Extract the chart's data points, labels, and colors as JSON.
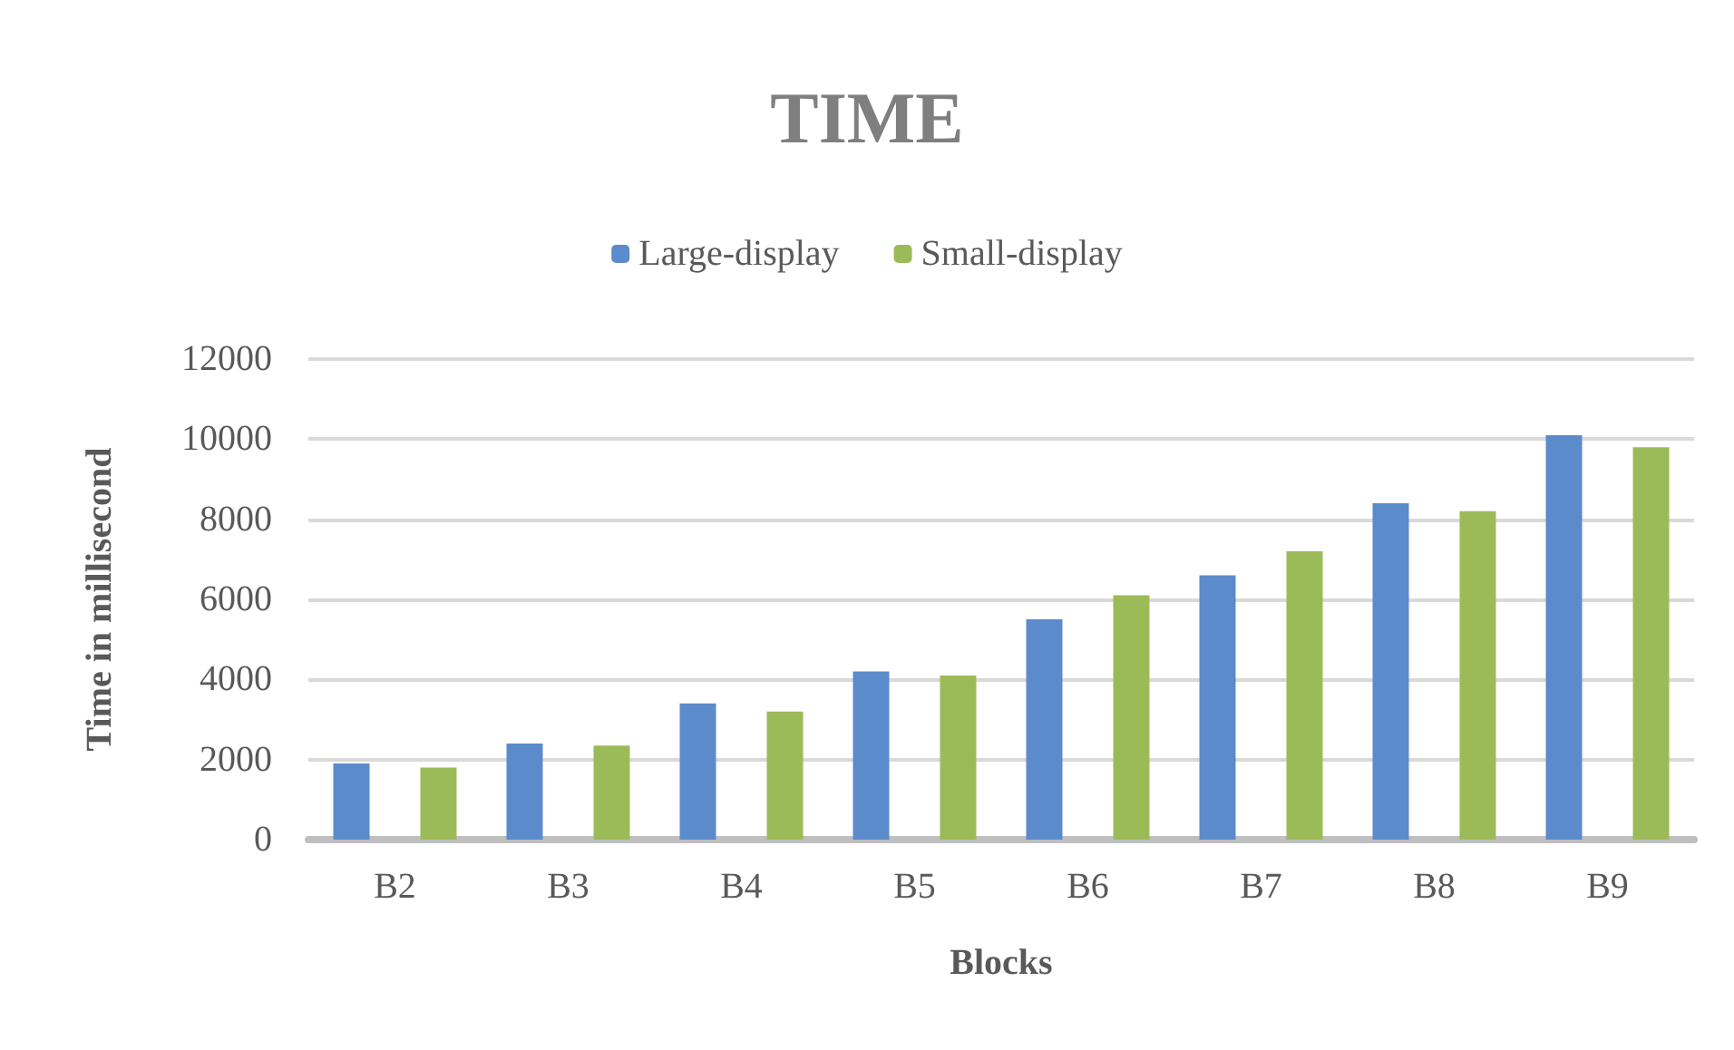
{
  "chart_data": {
    "type": "bar",
    "title": "TIME",
    "xlabel": "Blocks",
    "ylabel": "Time in millisecond",
    "categories": [
      "B2",
      "B3",
      "B4",
      "B5",
      "B6",
      "B7",
      "B8",
      "B9"
    ],
    "series": [
      {
        "name": "Large-display",
        "color": "#5b8bcb",
        "values": [
          1900,
          2400,
          3400,
          4200,
          5500,
          6600,
          8400,
          10100
        ]
      },
      {
        "name": "Small-display",
        "color": "#9bbb59",
        "values": [
          1800,
          2350,
          3200,
          4100,
          6100,
          7200,
          8200,
          9800
        ]
      }
    ],
    "ylim": [
      0,
      12000
    ],
    "yticks": [
      0,
      2000,
      4000,
      6000,
      8000,
      10000,
      12000
    ],
    "grid": "y",
    "legend": "top"
  }
}
